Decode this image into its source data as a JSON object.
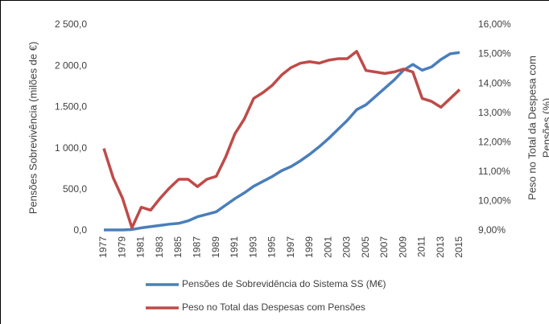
{
  "chart_data": {
    "type": "line",
    "ylabel": "Pensões Sobrevivência (milões de €)",
    "y2label": [
      "Peso no Total da Despesa com",
      "Pensões  (%)"
    ],
    "x": [
      1977,
      1978,
      1979,
      1980,
      1981,
      1982,
      1983,
      1984,
      1985,
      1986,
      1987,
      1988,
      1989,
      1990,
      1991,
      1992,
      1993,
      1994,
      1995,
      1996,
      1997,
      1998,
      1999,
      2000,
      2001,
      2002,
      2003,
      2004,
      2005,
      2006,
      2007,
      2008,
      2009,
      2010,
      2011,
      2012,
      2013,
      2014,
      2015
    ],
    "xlim": [
      1977,
      2015
    ],
    "xticks": [
      1977,
      1979,
      1981,
      1983,
      1985,
      1987,
      1989,
      1991,
      1993,
      1995,
      1997,
      1999,
      2001,
      2003,
      2005,
      2007,
      2009,
      2011,
      2013,
      2015
    ],
    "ylim": [
      0,
      2500
    ],
    "yticks": [
      {
        "value": 0,
        "label": "0,0"
      },
      {
        "value": 500,
        "label": "500,0"
      },
      {
        "value": 1000,
        "label": "1 000,0"
      },
      {
        "value": 1500,
        "label": "1.500,0"
      },
      {
        "value": 2000,
        "label": "2 000,0"
      },
      {
        "value": 2500,
        "label": "2 500,0"
      }
    ],
    "y2lim": [
      9,
      16
    ],
    "y2ticks": [
      {
        "value": 9,
        "label": "9,00%"
      },
      {
        "value": 10,
        "label": "10,00%"
      },
      {
        "value": 11,
        "label": "11,00%"
      },
      {
        "value": 12,
        "label": "12,00%"
      },
      {
        "value": 13,
        "label": "13,00%"
      },
      {
        "value": 14,
        "label": "14,00%"
      },
      {
        "value": 15,
        "label": "15,00%"
      },
      {
        "value": 16,
        "label": "16,00%"
      }
    ],
    "grid": false,
    "legend": "bottom",
    "series": [
      {
        "name": "Pensões de Sobrevidência do Sistema SS (M€)",
        "color": "#4a7ebb",
        "values": [
          10,
          10,
          10,
          15,
          35,
          50,
          65,
          80,
          90,
          120,
          170,
          200,
          230,
          310,
          390,
          460,
          540,
          600,
          660,
          730,
          780,
          850,
          930,
          1020,
          1120,
          1230,
          1340,
          1470,
          1530,
          1630,
          1730,
          1830,
          1950,
          2020,
          1950,
          1990,
          2080,
          2150,
          2165
        ]
      },
      {
        "name": "Peso no Total das Despesas com Pensões",
        "color": "#be4b48",
        "axis": "y2",
        "values": [
          11.8,
          10.8,
          10.1,
          9.1,
          9.8,
          9.7,
          10.1,
          10.45,
          10.75,
          10.75,
          10.5,
          10.75,
          10.85,
          11.5,
          12.3,
          12.8,
          13.5,
          13.7,
          13.95,
          14.3,
          14.55,
          14.7,
          14.75,
          14.7,
          14.8,
          14.85,
          14.85,
          15.1,
          14.45,
          14.4,
          14.35,
          14.4,
          14.5,
          14.4,
          13.5,
          13.4,
          13.2,
          13.5,
          13.8
        ]
      }
    ]
  }
}
